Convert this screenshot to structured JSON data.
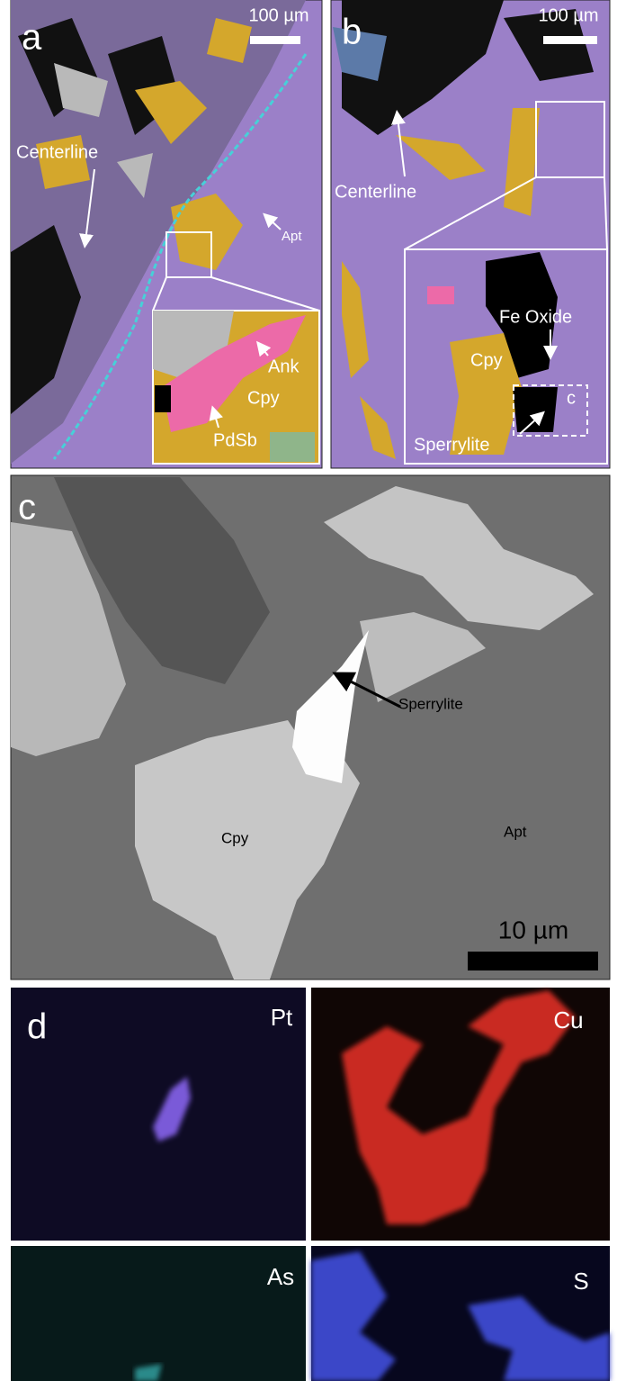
{
  "panels": {
    "a": {
      "label": "a",
      "scale_bar": "100 µm",
      "annotations": [
        "Centerline",
        "Apt"
      ],
      "inset": [
        "Ank",
        "Cpy",
        "PdSb"
      ]
    },
    "b": {
      "label": "b",
      "scale_bar": "100 µm",
      "annotations": [
        "Centerline"
      ],
      "inset": [
        "Fe Oxide",
        "Cpy",
        "Sperrylite",
        "c"
      ]
    },
    "c": {
      "label": "c",
      "scale_bar": "10 µm",
      "annotations": [
        "Sperrylite",
        "Cpy",
        "Apt"
      ]
    },
    "d": {
      "label": "d",
      "maps": [
        "Pt",
        "Cu",
        "As",
        "S"
      ]
    }
  }
}
